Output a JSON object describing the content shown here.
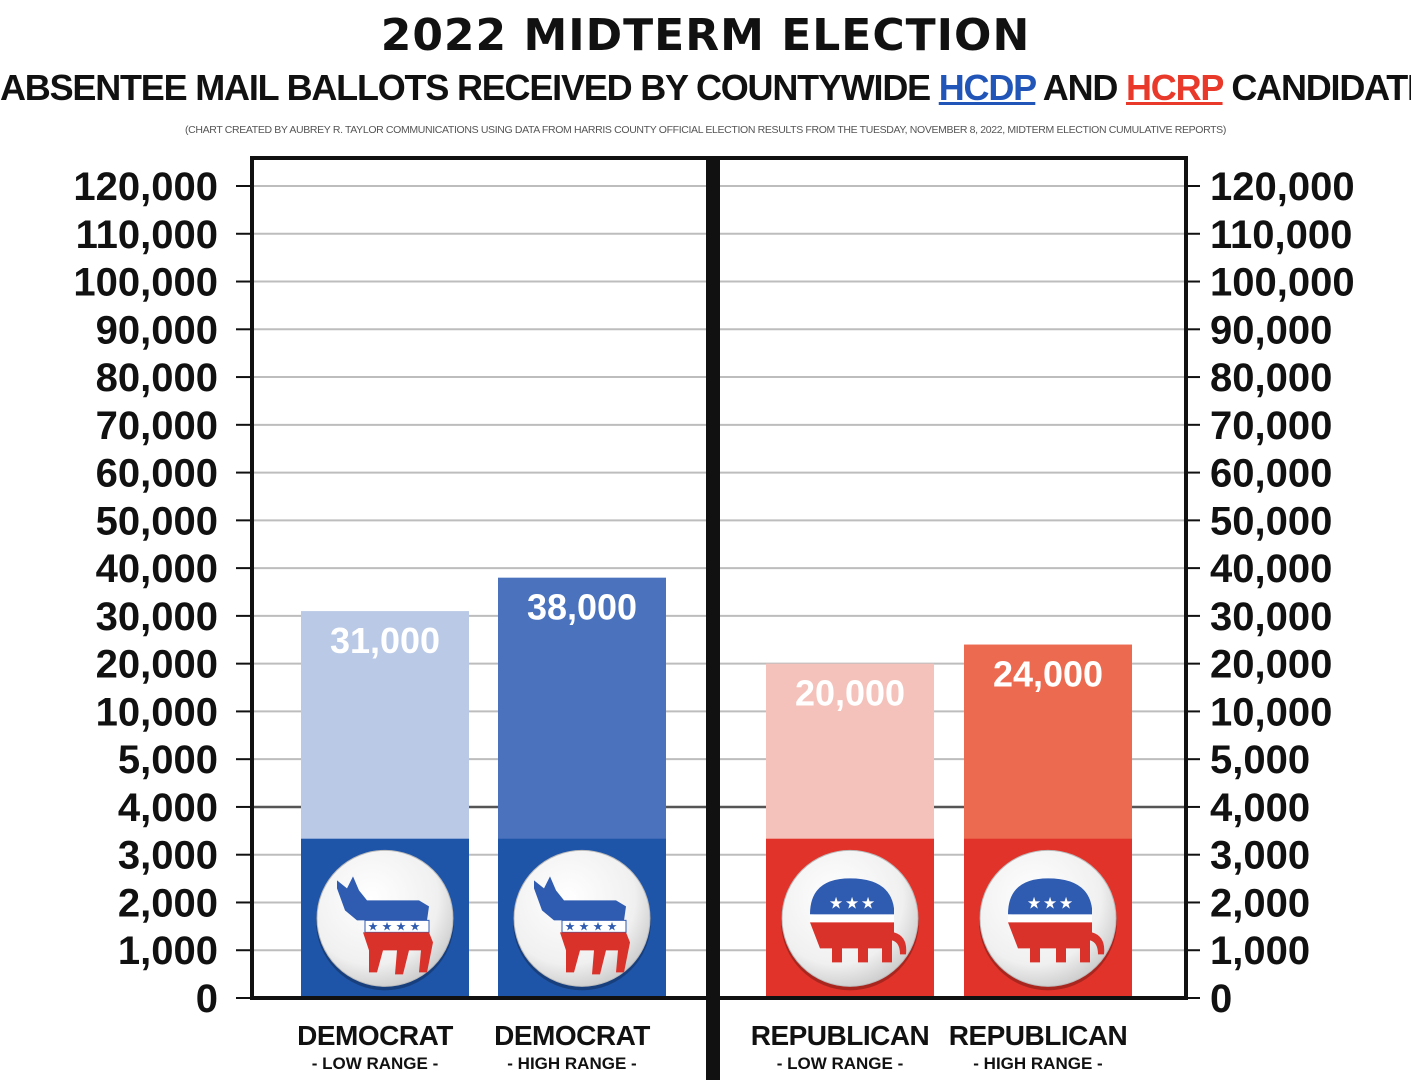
{
  "title_line1": "2022 MIDTERM ELECTION",
  "title_line2": {
    "before": "ABSENTEE MAIL BALLOTS RECEIVED BY COUNTYWIDE ",
    "hcdp": "HCDP",
    "middle": " AND ",
    "hcrp": "HCRP",
    "after": " CANDIDATES"
  },
  "subtitle": "(CHART CREATED BY AUBREY R. TAYLOR COMMUNICATIONS USING DATA FROM HARRIS COUNTY OFFICIAL ELECTION RESULTS FROM THE TUESDAY, NOVEMBER 8, 2022, MIDTERM ELECTION CUMULATIVE REPORTS)",
  "colors": {
    "hcdp": "#2255b8",
    "hcrp": "#e8392a"
  },
  "chart_data": {
    "type": "bar",
    "y_ticks": [
      "120,000",
      "110,000",
      "100,000",
      "90,000",
      "80,000",
      "70,000",
      "60,000",
      "50,000",
      "40,000",
      "30,000",
      "20,000",
      "10,000",
      "5,000",
      "4,000",
      "3,000",
      "2,000",
      "1,000",
      "0"
    ],
    "y_tick_values": [
      120000,
      110000,
      100000,
      90000,
      80000,
      70000,
      60000,
      50000,
      40000,
      30000,
      20000,
      10000,
      5000,
      4000,
      3000,
      2000,
      1000,
      0
    ],
    "ylim": [
      0,
      120000
    ],
    "grid": true,
    "axes_both_sides": true,
    "categories": [
      {
        "name": "DEMOCRAT",
        "range": "- LOW RANGE -"
      },
      {
        "name": "DEMOCRAT",
        "range": "- HIGH RANGE -"
      },
      {
        "name": "REPUBLICAN",
        "range": "- LOW RANGE -"
      },
      {
        "name": "REPUBLICAN",
        "range": "- HIGH RANGE -"
      }
    ],
    "values": [
      31000,
      38000,
      20000,
      24000
    ],
    "value_labels": [
      "31,000",
      "38,000",
      "20,000",
      "24,000"
    ],
    "bar_colors": [
      "#b9c9e6",
      "#4a72bd",
      "#f4c2ba",
      "#ec6a4f"
    ],
    "logo_colors": [
      "#1f55a8",
      "#1f55a8",
      "#e2332a",
      "#e2332a"
    ],
    "logo_icons": [
      "donkey-icon",
      "donkey-icon",
      "elephant-icon",
      "elephant-icon"
    ]
  }
}
